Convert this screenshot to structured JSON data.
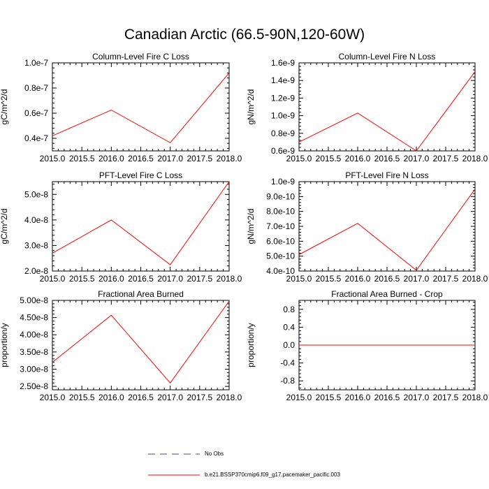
{
  "figure": {
    "title": "Canadian Arctic (66.5-90N,120-60W)"
  },
  "chart_data": [
    {
      "type": "line",
      "title": "Column-Level Fire C Loss",
      "xlabel": "",
      "ylabel": "gC/m^2/d",
      "x": [
        2015.0,
        2016.0,
        2017.0,
        2018.0
      ],
      "xlim": [
        2015.0,
        2018.0
      ],
      "ylim": [
        3e-08,
        1e-07
      ],
      "xticks": [
        2015.0,
        2015.5,
        2016.0,
        2016.5,
        2017.0,
        2017.5,
        2018.0
      ],
      "xtick_labels": [
        "2015.0",
        "2015.5",
        "2016.0",
        "2016.5",
        "2017.0",
        "2017.5",
        "2018.0"
      ],
      "yticks": [
        4e-08,
        6e-08,
        8e-08,
        1e-07
      ],
      "ytick_labels": [
        "0.4e-7",
        "0.6e-7",
        "0.8e-7",
        "1.0e-7"
      ],
      "series": [
        {
          "name": "b.e21.BSSP370cmip6.f09_g17.pacemaker_pacific.003",
          "color": "#ff0000",
          "values": [
            4.2e-08,
            6.25e-08,
            3.65e-08,
            9.2e-08
          ]
        }
      ]
    },
    {
      "type": "line",
      "title": "Column-Level Fire N Loss",
      "xlabel": "",
      "ylabel": "gN/m^2/d",
      "x": [
        2015.0,
        2016.0,
        2017.0,
        2018.0
      ],
      "xlim": [
        2015.0,
        2018.0
      ],
      "ylim": [
        6e-10,
        1.6e-09
      ],
      "xticks": [
        2015.0,
        2015.5,
        2016.0,
        2016.5,
        2017.0,
        2017.5,
        2018.0
      ],
      "xtick_labels": [
        "2015.0",
        "2015.5",
        "2016.0",
        "2016.5",
        "2017.0",
        "2017.5",
        "2018.0"
      ],
      "yticks": [
        6e-10,
        8e-10,
        1e-09,
        1.2e-09,
        1.4e-09,
        1.6e-09
      ],
      "ytick_labels": [
        "0.6e-9",
        "0.8e-9",
        "1.0e-9",
        "1.2e-9",
        "1.4e-9",
        "1.6e-9"
      ],
      "series": [
        {
          "name": "b.e21.BSSP370cmip6.f09_g17.pacemaker_pacific.003",
          "color": "#ff0000",
          "values": [
            7e-10,
            1.03e-09,
            6e-10,
            1.5e-09
          ]
        }
      ]
    },
    {
      "type": "line",
      "title": "PFT-Level Fire C Loss",
      "xlabel": "",
      "ylabel": "gC/m^2/d",
      "x": [
        2015.0,
        2016.0,
        2017.0,
        2018.0
      ],
      "xlim": [
        2015.0,
        2018.0
      ],
      "ylim": [
        2e-08,
        5.5e-08
      ],
      "xticks": [
        2015.0,
        2015.5,
        2016.0,
        2016.5,
        2017.0,
        2017.5,
        2018.0
      ],
      "xtick_labels": [
        "2015.0",
        "2015.5",
        "2016.0",
        "2016.5",
        "2017.0",
        "2017.5",
        "2018.0"
      ],
      "yticks": [
        2e-08,
        3e-08,
        4e-08,
        5e-08
      ],
      "ytick_labels": [
        "2.0e-8",
        "3.0e-8",
        "4.0e-8",
        "5.0e-8"
      ],
      "series": [
        {
          "name": "b.e21.BSSP370cmip6.f09_g17.pacemaker_pacific.003",
          "color": "#ff0000",
          "values": [
            2.7e-08,
            4e-08,
            2.25e-08,
            5.5e-08
          ]
        }
      ]
    },
    {
      "type": "line",
      "title": "PFT-Level Fire N Loss",
      "xlabel": "",
      "ylabel": "gN/m^2/d",
      "x": [
        2015.0,
        2016.0,
        2017.0,
        2018.0
      ],
      "xlim": [
        2015.0,
        2018.0
      ],
      "ylim": [
        4e-10,
        1e-09
      ],
      "xticks": [
        2015.0,
        2015.5,
        2016.0,
        2016.5,
        2017.0,
        2017.5,
        2018.0
      ],
      "xtick_labels": [
        "2015.0",
        "2015.5",
        "2016.0",
        "2016.5",
        "2017.0",
        "2017.5",
        "2018.0"
      ],
      "yticks": [
        4e-10,
        5e-10,
        6e-10,
        7e-10,
        8e-10,
        9e-10,
        1e-09
      ],
      "ytick_labels": [
        "4.0e-10",
        "5.0e-10",
        "6.0e-10",
        "7.0e-10",
        "8.0e-10",
        "9.0e-10",
        "1.0e-9"
      ],
      "series": [
        {
          "name": "b.e21.BSSP370cmip6.f09_g17.pacemaker_pacific.003",
          "color": "#ff0000",
          "values": [
            5.1e-10,
            7.2e-10,
            4.05e-10,
            9.5e-10
          ]
        }
      ]
    },
    {
      "type": "line",
      "title": "Fractional Area Burned",
      "xlabel": "",
      "ylabel": "proportion/y",
      "x": [
        2015.0,
        2016.0,
        2017.0,
        2018.0
      ],
      "xlim": [
        2015.0,
        2018.0
      ],
      "ylim": [
        2.4e-08,
        5e-08
      ],
      "xticks": [
        2015.0,
        2015.5,
        2016.0,
        2016.5,
        2017.0,
        2017.5,
        2018.0
      ],
      "xtick_labels": [
        "2015.0",
        "2015.5",
        "2016.0",
        "2016.5",
        "2017.0",
        "2017.5",
        "2018.0"
      ],
      "yticks": [
        2.5e-08,
        3e-08,
        3.5e-08,
        4e-08,
        4.5e-08,
        5e-08
      ],
      "ytick_labels": [
        "2.50e-8",
        "3.00e-8",
        "3.50e-8",
        "4.00e-8",
        "4.50e-8",
        "5.00e-8"
      ],
      "series": [
        {
          "name": "b.e21.BSSP370cmip6.f09_g17.pacemaker_pacific.003",
          "color": "#ff0000",
          "values": [
            3.2e-08,
            4.57e-08,
            2.6e-08,
            4.98e-08
          ]
        }
      ]
    },
    {
      "type": "line",
      "title": "Fractional Area Burned - Crop",
      "xlabel": "",
      "ylabel": "proportion/y",
      "x": [
        2015.0,
        2016.0,
        2017.0,
        2018.0
      ],
      "xlim": [
        2015.0,
        2018.0
      ],
      "ylim": [
        -1.0,
        1.0
      ],
      "xticks": [
        2015.0,
        2015.5,
        2016.0,
        2016.5,
        2017.0,
        2017.5,
        2018.0
      ],
      "xtick_labels": [
        "2015.0",
        "2015.5",
        "2016.0",
        "2016.5",
        "2017.0",
        "2017.5",
        "2018.0"
      ],
      "yticks": [
        -0.8,
        -0.4,
        0.0,
        0.4,
        0.8
      ],
      "ytick_labels": [
        "-0.8",
        "-0.4",
        "0.0",
        "0.4",
        "0.8"
      ],
      "series": [
        {
          "name": "b.e21.BSSP370cmip6.f09_g17.pacemaker_pacific.003",
          "color": "#ff0000",
          "values": [
            0.0,
            0.0,
            0.0,
            0.0
          ]
        }
      ]
    }
  ],
  "legend": {
    "items": [
      {
        "label": "No Obs",
        "style": "dashed",
        "color": "#4b3fa0"
      },
      {
        "label": "b.e21.BSSP370cmip6.f09_g17.pacemaker_pacific.003",
        "style": "solid",
        "color": "#ff0000"
      }
    ]
  }
}
